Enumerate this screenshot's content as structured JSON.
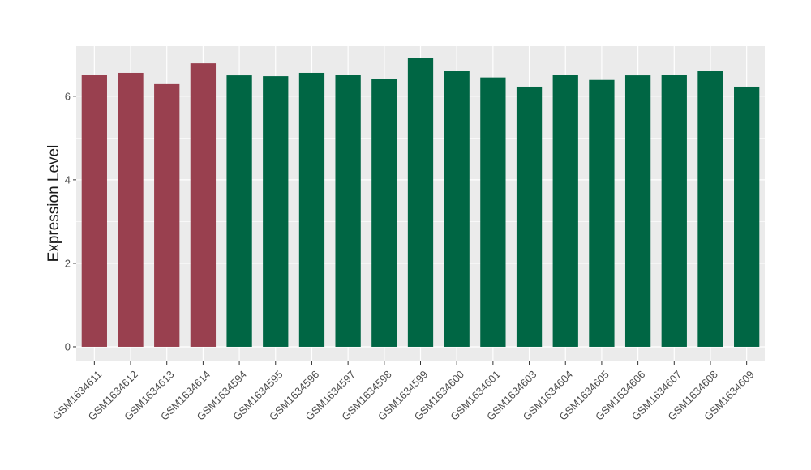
{
  "chart_data": {
    "type": "bar",
    "ylabel": "Expression Level",
    "xlabel": "",
    "ylim": [
      -0.35,
      7.2
    ],
    "yticks": [
      0,
      2,
      4,
      6
    ],
    "grid": true,
    "legend": "none",
    "categories": [
      "GSM1634611",
      "GSM1634612",
      "GSM1634613",
      "GSM1634614",
      "GSM1634594",
      "GSM1634595",
      "GSM1634596",
      "GSM1634597",
      "GSM1634598",
      "GSM1634599",
      "GSM1634600",
      "GSM1634601",
      "GSM1634603",
      "GSM1634604",
      "GSM1634605",
      "GSM1634606",
      "GSM1634607",
      "GSM1634608",
      "GSM1634609"
    ],
    "values": [
      6.52,
      6.56,
      6.29,
      6.79,
      6.5,
      6.48,
      6.56,
      6.52,
      6.42,
      6.91,
      6.6,
      6.45,
      6.23,
      6.52,
      6.39,
      6.5,
      6.52,
      6.6,
      6.23
    ],
    "groups": [
      0,
      0,
      0,
      0,
      1,
      1,
      1,
      1,
      1,
      1,
      1,
      1,
      1,
      1,
      1,
      1,
      1,
      1,
      1
    ],
    "colors": {
      "group_a": "#99404f",
      "group_b": "#006644",
      "panel": "#ebebeb",
      "grid": "#ffffff"
    }
  }
}
